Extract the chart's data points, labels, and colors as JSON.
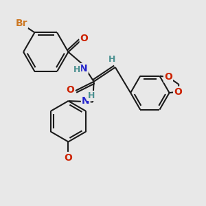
{
  "bg_color": "#e8e8e8",
  "bond_color": "#1a1a1a",
  "bond_width": 1.5,
  "atom_colors": {
    "Br": "#cc7722",
    "O": "#cc2200",
    "N": "#2222cc",
    "H": "#4a9090",
    "C": "#1a1a1a"
  },
  "font_size_atom": 10,
  "font_size_H": 9,
  "font_size_small": 7.5
}
